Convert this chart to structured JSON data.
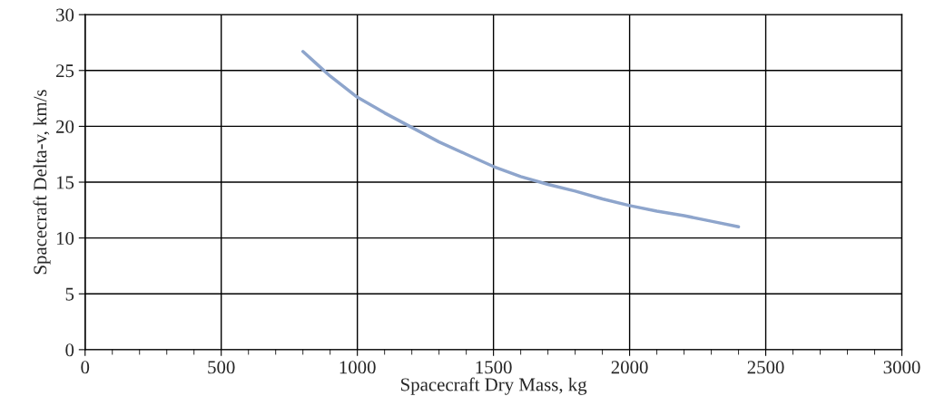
{
  "chart_data": {
    "type": "line",
    "xlabel": "Spacecraft Dry Mass, kg",
    "ylabel": "Spacecraft Delta-v, km/s",
    "x": [
      800,
      850,
      900,
      1000,
      1100,
      1200,
      1300,
      1400,
      1500,
      1600,
      1700,
      1800,
      1900,
      2000,
      2100,
      2200,
      2300,
      2400
    ],
    "series": [
      {
        "color": "#8ea5cc",
        "values": [
          26.7,
          25.6,
          24.5,
          22.6,
          21.2,
          19.9,
          18.6,
          17.5,
          16.4,
          15.5,
          14.8,
          14.2,
          13.5,
          12.9,
          12.4,
          12.0,
          11.5,
          11.0
        ]
      }
    ],
    "xlim": [
      0,
      3000
    ],
    "ylim": [
      0,
      30
    ],
    "xticks": [
      0,
      {
        "value": 100,
        "label": null
      },
      {
        "value": 200,
        "label": null
      },
      {
        "value": 300,
        "label": null
      },
      {
        "value": 400,
        "label": null
      },
      500,
      {
        "value": 600,
        "label": null
      },
      {
        "value": 700,
        "label": null
      },
      {
        "value": 800,
        "label": null
      },
      {
        "value": 900,
        "label": null
      },
      1000,
      {
        "value": 1100,
        "label": null
      },
      {
        "value": 1200,
        "label": null
      },
      {
        "value": 1300,
        "label": null
      },
      {
        "value": 1400,
        "label": null
      },
      1500,
      {
        "value": 1600,
        "label": null
      },
      {
        "value": 1700,
        "label": null
      },
      {
        "value": 1800,
        "label": null
      },
      {
        "value": 1900,
        "label": null
      },
      2000,
      {
        "value": 2100,
        "label": null
      },
      {
        "value": 2200,
        "label": null
      },
      {
        "value": 2300,
        "label": null
      },
      {
        "value": 2400,
        "label": null
      },
      2500,
      {
        "value": 2600,
        "label": null
      },
      {
        "value": 2700,
        "label": null
      },
      {
        "value": 2800,
        "label": null
      },
      {
        "value": 2900,
        "label": null
      },
      3000
    ],
    "yticks": [
      0,
      5,
      10,
      15,
      20,
      25,
      30
    ],
    "grid": true,
    "legend": false,
    "marker": "none",
    "line_style": "solid"
  }
}
